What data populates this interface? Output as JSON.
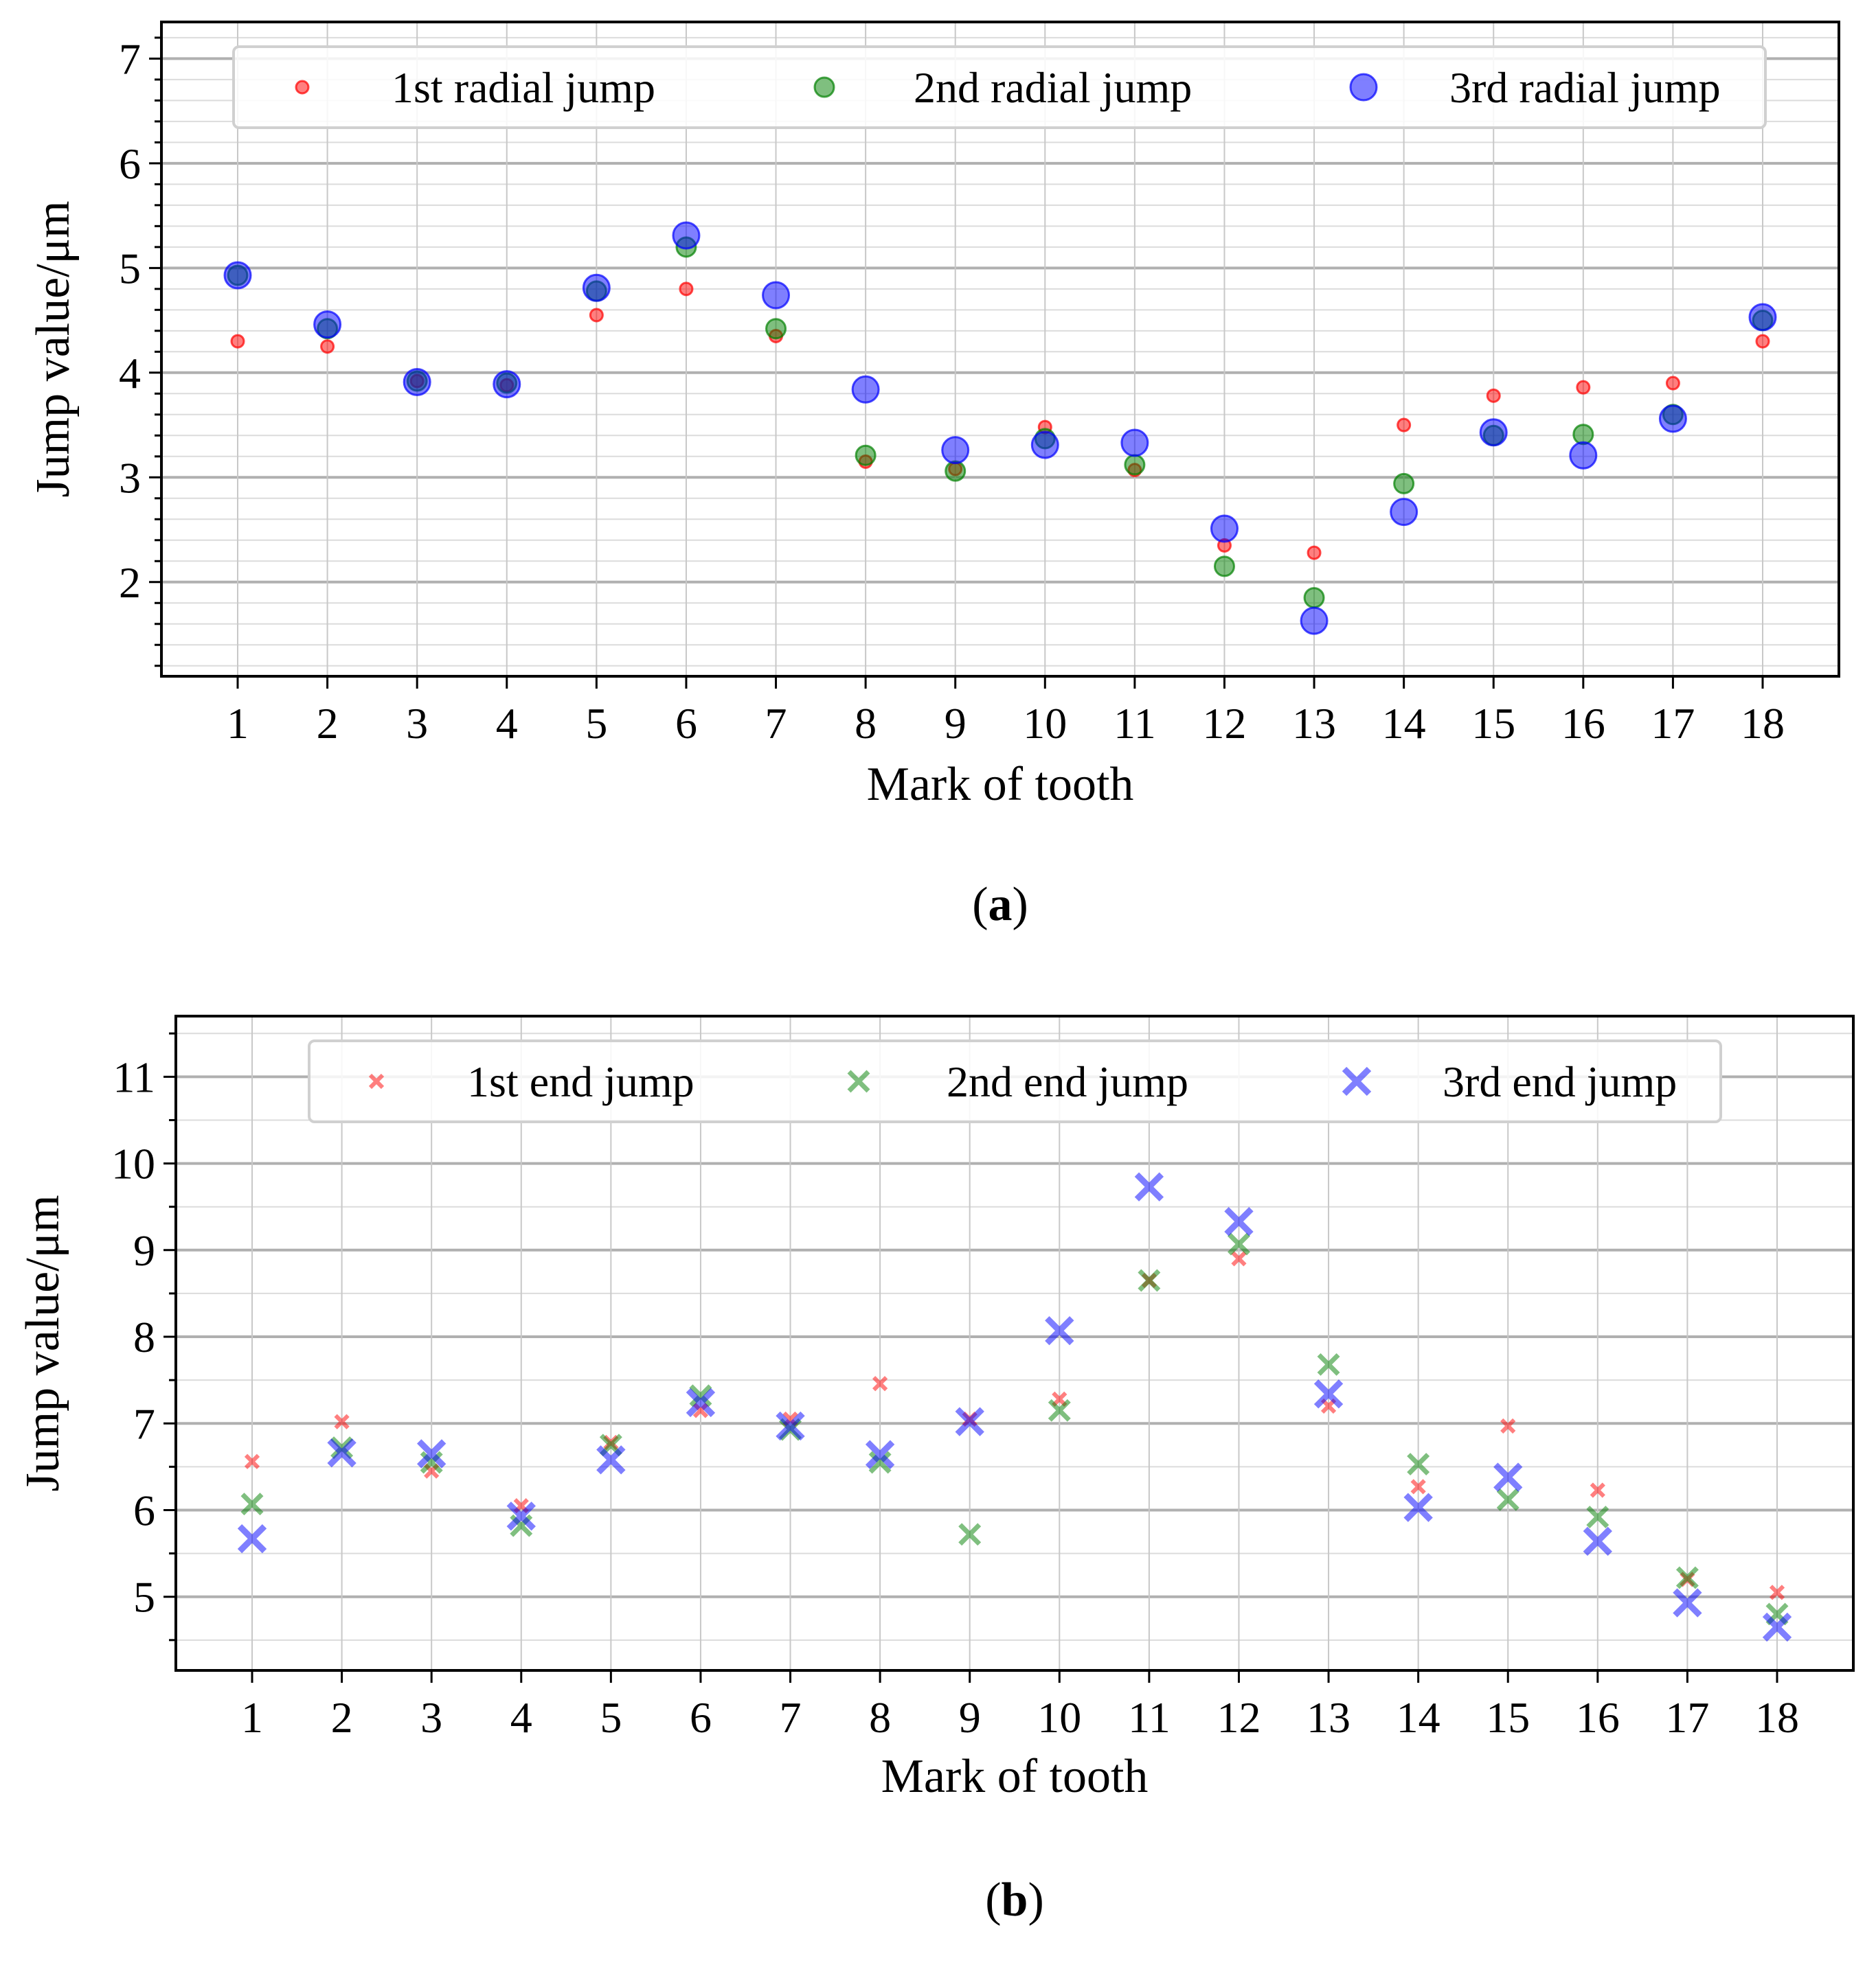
{
  "chart_data": [
    {
      "type": "scatter",
      "caption_letter": "a",
      "xlabel": "Mark of tooth",
      "ylabel": "Jump value/μm",
      "x": [
        1,
        2,
        3,
        4,
        5,
        6,
        7,
        8,
        9,
        10,
        11,
        12,
        13,
        14,
        15,
        16,
        17,
        18
      ],
      "x_tick_labels": [
        "1",
        "2",
        "3",
        "4",
        "5",
        "6",
        "7",
        "8",
        "9",
        "10",
        "11",
        "12",
        "13",
        "14",
        "15",
        "16",
        "17",
        "18"
      ],
      "xlim": [
        0.15,
        18.85
      ],
      "ylim": [
        1.1,
        7.35
      ],
      "y_ticks": [
        2,
        3,
        4,
        5,
        6,
        7
      ],
      "y_tick_labels": [
        "2",
        "3",
        "4",
        "5",
        "6",
        "7"
      ],
      "y_minor_step": 0.2,
      "grid": true,
      "legend_position": "top",
      "marker": "circle",
      "series": [
        {
          "name": "1st radial jump",
          "color": "#ff0000",
          "size": "small",
          "values": [
            4.3,
            4.25,
            3.92,
            3.88,
            4.55,
            4.8,
            4.35,
            3.15,
            3.08,
            3.48,
            3.07,
            2.35,
            2.28,
            3.5,
            3.78,
            3.86,
            3.9,
            4.3
          ]
        },
        {
          "name": "2nd radial jump",
          "color": "#008000",
          "size": "medium",
          "values": [
            4.93,
            4.42,
            3.92,
            3.9,
            4.78,
            5.2,
            4.42,
            3.21,
            3.06,
            3.37,
            3.12,
            2.15,
            1.85,
            2.94,
            3.4,
            3.41,
            3.6,
            4.5
          ]
        },
        {
          "name": "3rd radial jump",
          "color": "#0000ff",
          "size": "large",
          "values": [
            4.93,
            4.46,
            3.91,
            3.89,
            4.81,
            5.31,
            4.74,
            3.84,
            3.26,
            3.31,
            3.33,
            2.51,
            1.63,
            2.67,
            3.43,
            3.21,
            3.56,
            4.53
          ]
        }
      ]
    },
    {
      "type": "scatter",
      "caption_letter": "b",
      "xlabel": "Mark of tooth",
      "ylabel": "Jump value/μm",
      "x": [
        1,
        2,
        3,
        4,
        5,
        6,
        7,
        8,
        9,
        10,
        11,
        12,
        13,
        14,
        15,
        16,
        17,
        18
      ],
      "x_tick_labels": [
        "1",
        "2",
        "3",
        "4",
        "5",
        "6",
        "7",
        "8",
        "9",
        "10",
        "11",
        "12",
        "13",
        "14",
        "15",
        "16",
        "17",
        "18"
      ],
      "xlim": [
        0.15,
        18.85
      ],
      "ylim": [
        4.15,
        11.7
      ],
      "y_ticks": [
        5,
        6,
        7,
        8,
        9,
        10,
        11
      ],
      "y_tick_labels": [
        "5",
        "6",
        "7",
        "8",
        "9",
        "10",
        "11"
      ],
      "y_minor_step": 0.5,
      "grid": true,
      "legend_position": "top",
      "marker": "x",
      "series": [
        {
          "name": "1st end jump",
          "color": "#ff0000",
          "size": "small",
          "values": [
            6.56,
            7.02,
            6.45,
            6.05,
            6.78,
            7.15,
            7.05,
            7.46,
            7.05,
            7.28,
            8.65,
            8.9,
            7.2,
            6.27,
            6.97,
            6.23,
            5.2,
            5.05
          ]
        },
        {
          "name": "2nd end jump",
          "color": "#008000",
          "size": "medium",
          "values": [
            6.07,
            6.72,
            6.55,
            5.82,
            6.75,
            7.32,
            6.93,
            6.55,
            5.72,
            7.15,
            8.65,
            9.07,
            7.68,
            6.53,
            6.12,
            5.92,
            5.22,
            4.8
          ]
        },
        {
          "name": "3rd end jump",
          "color": "#0000ff",
          "size": "large",
          "values": [
            5.67,
            6.66,
            6.65,
            5.93,
            6.58,
            7.24,
            6.97,
            6.64,
            7.02,
            8.07,
            9.73,
            9.33,
            7.34,
            6.03,
            6.38,
            5.64,
            4.93,
            4.65
          ]
        }
      ]
    }
  ]
}
